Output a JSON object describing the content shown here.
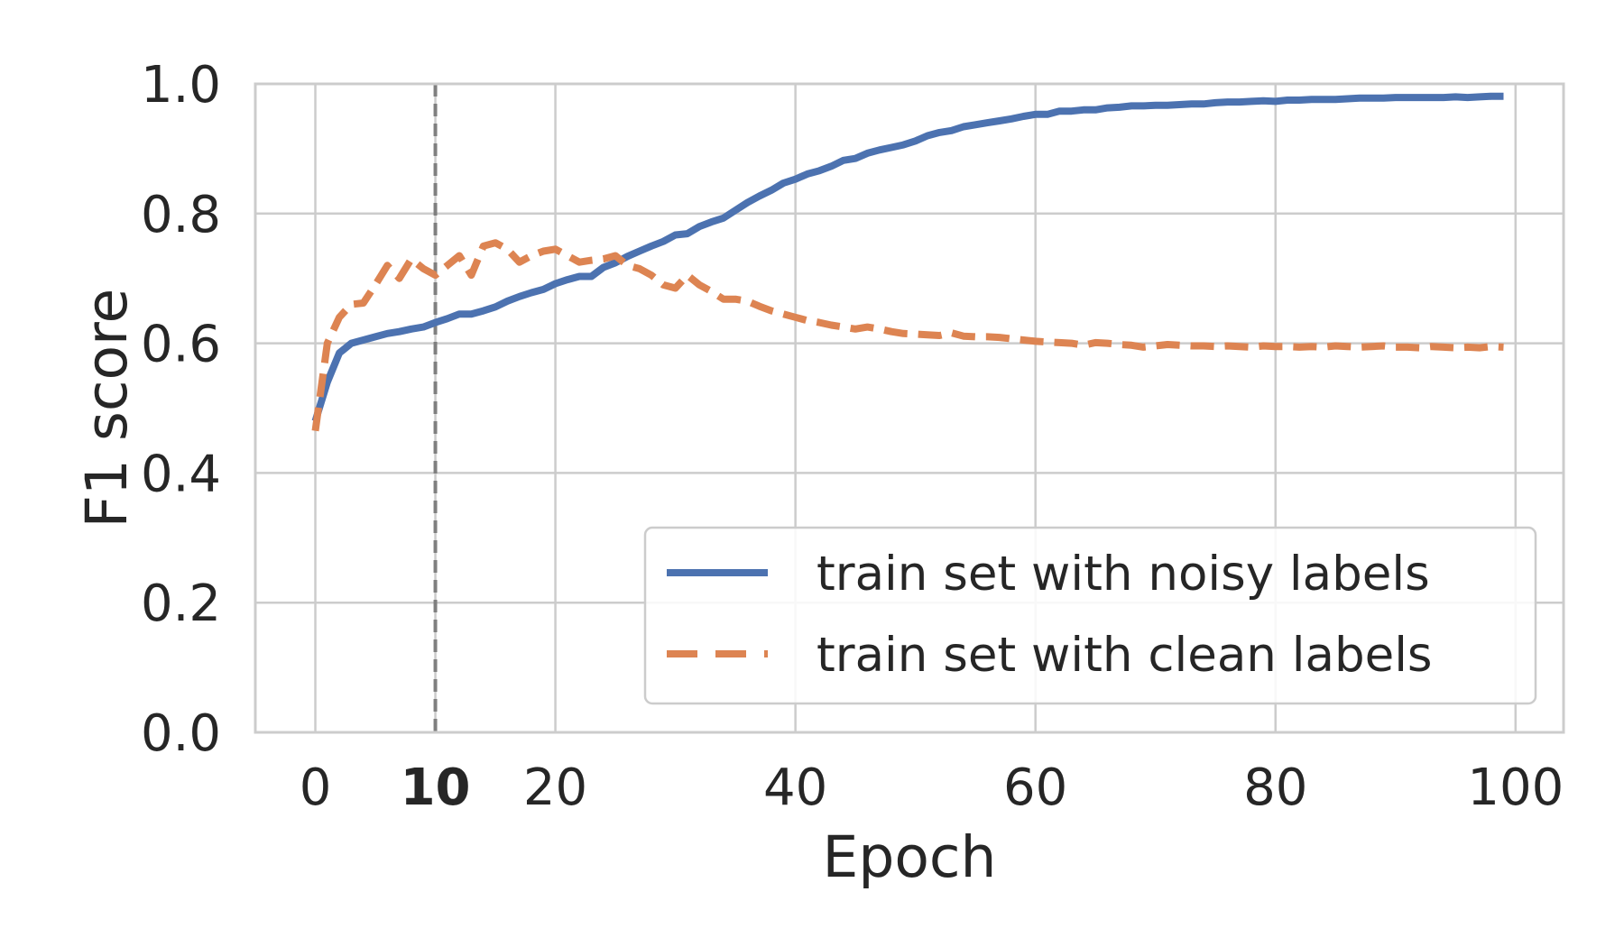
{
  "chart_data": {
    "type": "line",
    "title": "",
    "xlabel": "Epoch",
    "ylabel": "F1 score",
    "xlim": [
      -5,
      104
    ],
    "ylim": [
      0.0,
      1.0
    ],
    "x_ticks": [
      0,
      10,
      20,
      40,
      60,
      80,
      100
    ],
    "x_tick_labels": [
      "0",
      "10",
      "20",
      "40",
      "60",
      "80",
      "100"
    ],
    "x_tick_bold": "10",
    "y_ticks": [
      0.0,
      0.2,
      0.4,
      0.6,
      0.8,
      1.0
    ],
    "y_tick_labels": [
      "0.0",
      "0.2",
      "0.4",
      "0.6",
      "0.8",
      "1.0"
    ],
    "grid": true,
    "vline": {
      "x": 10,
      "color": "#7f7f7f",
      "style": "dashed"
    },
    "legend_position": "lower-right",
    "series": [
      {
        "name": "train set with noisy labels",
        "color": "#4c72b0",
        "style": "solid",
        "x": [
          0,
          1,
          2,
          3,
          4,
          5,
          6,
          7,
          8,
          9,
          10,
          11,
          12,
          13,
          14,
          15,
          16,
          17,
          18,
          19,
          20,
          21,
          22,
          23,
          24,
          25,
          26,
          27,
          28,
          29,
          30,
          31,
          32,
          33,
          34,
          35,
          36,
          37,
          38,
          39,
          40,
          41,
          42,
          43,
          44,
          45,
          46,
          47,
          48,
          49,
          50,
          51,
          52,
          53,
          54,
          55,
          56,
          57,
          58,
          59,
          60,
          61,
          62,
          63,
          64,
          65,
          66,
          67,
          68,
          69,
          70,
          71,
          72,
          73,
          74,
          75,
          76,
          77,
          78,
          79,
          80,
          81,
          82,
          83,
          84,
          85,
          86,
          87,
          88,
          89,
          90,
          91,
          92,
          93,
          94,
          95,
          96,
          97,
          98,
          99
        ],
        "y": [
          0.48,
          0.54,
          0.585,
          0.6,
          0.605,
          0.61,
          0.615,
          0.618,
          0.622,
          0.625,
          0.632,
          0.638,
          0.645,
          0.645,
          0.65,
          0.656,
          0.665,
          0.672,
          0.678,
          0.683,
          0.692,
          0.698,
          0.703,
          0.703,
          0.717,
          0.724,
          0.734,
          0.742,
          0.75,
          0.757,
          0.767,
          0.769,
          0.78,
          0.787,
          0.793,
          0.805,
          0.817,
          0.827,
          0.836,
          0.847,
          0.853,
          0.861,
          0.866,
          0.873,
          0.882,
          0.885,
          0.893,
          0.898,
          0.902,
          0.906,
          0.912,
          0.92,
          0.925,
          0.928,
          0.934,
          0.937,
          0.94,
          0.943,
          0.946,
          0.95,
          0.953,
          0.953,
          0.958,
          0.958,
          0.96,
          0.96,
          0.963,
          0.964,
          0.966,
          0.966,
          0.967,
          0.967,
          0.968,
          0.969,
          0.969,
          0.971,
          0.972,
          0.972,
          0.973,
          0.974,
          0.973,
          0.975,
          0.975,
          0.976,
          0.976,
          0.976,
          0.977,
          0.978,
          0.978,
          0.978,
          0.979,
          0.979,
          0.979,
          0.979,
          0.979,
          0.98,
          0.979,
          0.98,
          0.981,
          0.981
        ]
      },
      {
        "name": "train set with clean labels",
        "color": "#dd8452",
        "style": "dashed",
        "x": [
          0,
          1,
          2,
          3,
          4,
          5,
          6,
          7,
          8,
          9,
          10,
          11,
          12,
          13,
          14,
          15,
          16,
          17,
          18,
          19,
          20,
          21,
          22,
          23,
          24,
          25,
          26,
          27,
          28,
          29,
          30,
          31,
          32,
          33,
          34,
          35,
          36,
          37,
          38,
          39,
          40,
          41,
          42,
          43,
          44,
          45,
          46,
          47,
          48,
          49,
          50,
          51,
          52,
          53,
          54,
          55,
          56,
          57,
          58,
          59,
          60,
          61,
          62,
          63,
          64,
          65,
          66,
          67,
          68,
          69,
          70,
          71,
          72,
          73,
          74,
          75,
          76,
          77,
          78,
          79,
          80,
          81,
          82,
          83,
          84,
          85,
          86,
          87,
          88,
          89,
          90,
          91,
          92,
          93,
          94,
          95,
          96,
          97,
          98,
          99
        ],
        "y": [
          0.465,
          0.6,
          0.64,
          0.66,
          0.662,
          0.69,
          0.72,
          0.7,
          0.73,
          0.715,
          0.705,
          0.72,
          0.735,
          0.705,
          0.75,
          0.755,
          0.745,
          0.725,
          0.735,
          0.742,
          0.745,
          0.735,
          0.725,
          0.728,
          0.73,
          0.735,
          0.72,
          0.715,
          0.705,
          0.69,
          0.685,
          0.705,
          0.69,
          0.68,
          0.668,
          0.668,
          0.665,
          0.657,
          0.65,
          0.645,
          0.64,
          0.635,
          0.632,
          0.628,
          0.625,
          0.622,
          0.625,
          0.622,
          0.618,
          0.615,
          0.614,
          0.613,
          0.612,
          0.616,
          0.611,
          0.61,
          0.61,
          0.609,
          0.607,
          0.605,
          0.603,
          0.602,
          0.601,
          0.6,
          0.597,
          0.601,
          0.6,
          0.598,
          0.597,
          0.594,
          0.596,
          0.598,
          0.597,
          0.596,
          0.596,
          0.595,
          0.596,
          0.595,
          0.594,
          0.596,
          0.595,
          0.595,
          0.594,
          0.595,
          0.594,
          0.596,
          0.595,
          0.594,
          0.595,
          0.596,
          0.594,
          0.594,
          0.593,
          0.595,
          0.594,
          0.593,
          0.594,
          0.593,
          0.595,
          0.594
        ]
      }
    ]
  }
}
